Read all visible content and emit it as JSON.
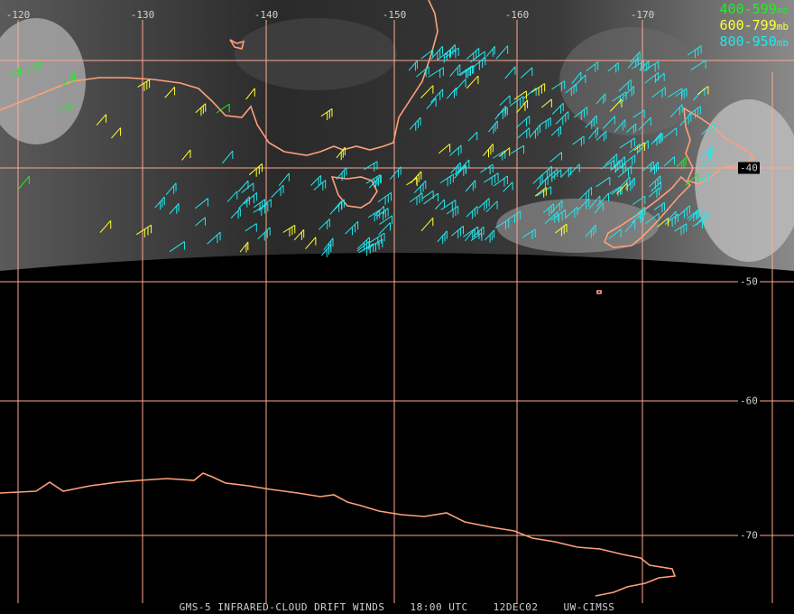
{
  "colors": {
    "grid": "#ffa890",
    "coast": "#ffa07a",
    "level_400_599": "#22ee22",
    "level_600_799": "#ffff33",
    "level_800_950": "#22e8ee"
  },
  "lon_labels": [
    "-120",
    "-130",
    "-140",
    "-150",
    "-160",
    "-170"
  ],
  "lat_labels": [
    "-40",
    "-50",
    "-60",
    "-70"
  ],
  "legend": [
    {
      "range": "400-599",
      "unit": "mb",
      "color": "#22ee22"
    },
    {
      "range": "600-799",
      "unit": "mb",
      "color": "#ffff33"
    },
    {
      "range": "800-950",
      "unit": "mb",
      "color": "#22e8ee"
    }
  ],
  "footer": {
    "product": "GMS-5 INFRARED-CLOUD DRIFT WINDS",
    "time": "18:00 UTC",
    "date": "12DEC02",
    "source": "UW-CIMSS"
  }
}
